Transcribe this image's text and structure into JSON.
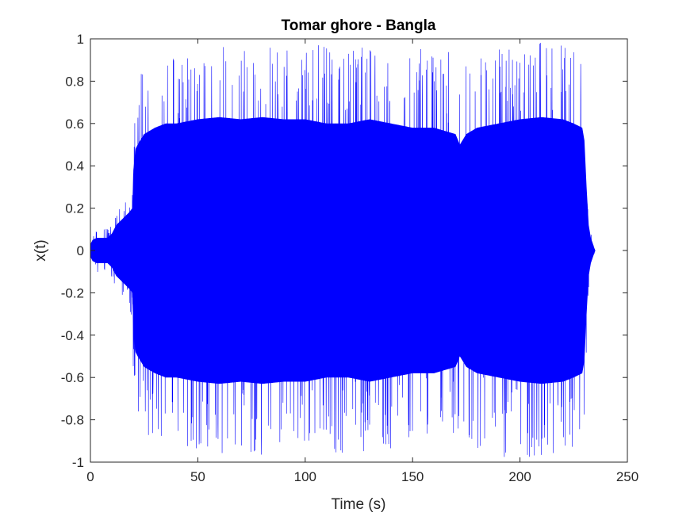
{
  "chart_data": {
    "type": "line",
    "title": "Tomar ghore - Bangla",
    "xlabel": "Time (s)",
    "ylabel": "x(t)",
    "xlim": [
      0,
      250
    ],
    "ylim": [
      -1,
      1
    ],
    "xticks": [
      0,
      50,
      100,
      150,
      200,
      250
    ],
    "yticks": [
      -1,
      -0.8,
      -0.6,
      -0.4,
      -0.2,
      0,
      0.2,
      0.4,
      0.6,
      0.8,
      1
    ],
    "xtick_labels": [
      "0",
      "50",
      "100",
      "150",
      "200",
      "250"
    ],
    "ytick_labels": [
      "-1",
      "-0.8",
      "-0.6",
      "-0.4",
      "-0.2",
      "0",
      "0.2",
      "0.4",
      "0.6",
      "0.8",
      "1"
    ],
    "grid": false,
    "box": true,
    "series": [
      {
        "color": "#0000ff",
        "envelope": {
          "t": [
            0,
            1,
            3,
            5,
            8,
            10,
            12,
            15,
            18,
            19.5,
            20,
            21,
            22,
            25,
            30,
            35,
            40,
            50,
            60,
            70,
            80,
            90,
            100,
            110,
            120,
            130,
            140,
            150,
            160,
            170,
            172,
            175,
            180,
            190,
            200,
            210,
            220,
            225,
            229,
            230,
            231,
            232,
            233,
            234,
            235
          ],
          "upper": [
            0.05,
            0.08,
            0.1,
            0.11,
            0.1,
            0.12,
            0.2,
            0.25,
            0.28,
            0.3,
            0.55,
            0.75,
            0.82,
            0.88,
            0.9,
            0.9,
            0.92,
            0.95,
            0.97,
            0.97,
            0.98,
            0.96,
            0.97,
            0.97,
            0.96,
            0.98,
            0.97,
            0.95,
            0.96,
            0.93,
            0.85,
            0.9,
            0.93,
            0.95,
            0.98,
            0.99,
            0.97,
            0.95,
            0.93,
            0.88,
            0.55,
            0.2,
            0.1,
            0.05,
            0.0
          ],
          "lower": [
            -0.05,
            -0.08,
            -0.1,
            -0.11,
            -0.1,
            -0.13,
            -0.22,
            -0.25,
            -0.28,
            -0.32,
            -0.6,
            -0.85,
            -0.82,
            -0.88,
            -0.9,
            -0.92,
            -0.9,
            -0.95,
            -0.97,
            -0.95,
            -0.97,
            -0.96,
            -0.94,
            -0.97,
            -0.95,
            -0.96,
            -0.97,
            -0.93,
            -0.95,
            -0.9,
            -0.85,
            -0.93,
            -0.95,
            -0.97,
            -0.99,
            -0.97,
            -0.96,
            -0.95,
            -0.93,
            -0.9,
            -0.55,
            -0.2,
            -0.1,
            -0.05,
            0.0
          ],
          "dense_upper": [
            0.03,
            0.05,
            0.06,
            0.06,
            0.06,
            0.08,
            0.12,
            0.15,
            0.18,
            0.2,
            0.38,
            0.48,
            0.5,
            0.55,
            0.58,
            0.6,
            0.6,
            0.62,
            0.63,
            0.62,
            0.63,
            0.62,
            0.62,
            0.6,
            0.6,
            0.62,
            0.6,
            0.58,
            0.58,
            0.55,
            0.5,
            0.55,
            0.58,
            0.6,
            0.62,
            0.63,
            0.62,
            0.6,
            0.58,
            0.52,
            0.3,
            0.12,
            0.06,
            0.03,
            0.0
          ],
          "dense_lower": [
            -0.03,
            -0.05,
            -0.06,
            -0.06,
            -0.06,
            -0.08,
            -0.12,
            -0.15,
            -0.18,
            -0.2,
            -0.38,
            -0.48,
            -0.5,
            -0.55,
            -0.58,
            -0.6,
            -0.6,
            -0.62,
            -0.63,
            -0.62,
            -0.63,
            -0.62,
            -0.62,
            -0.6,
            -0.6,
            -0.62,
            -0.6,
            -0.58,
            -0.58,
            -0.55,
            -0.5,
            -0.55,
            -0.58,
            -0.6,
            -0.62,
            -0.63,
            -0.62,
            -0.6,
            -0.58,
            -0.52,
            -0.3,
            -0.12,
            -0.06,
            -0.03,
            0.0
          ]
        }
      }
    ]
  }
}
